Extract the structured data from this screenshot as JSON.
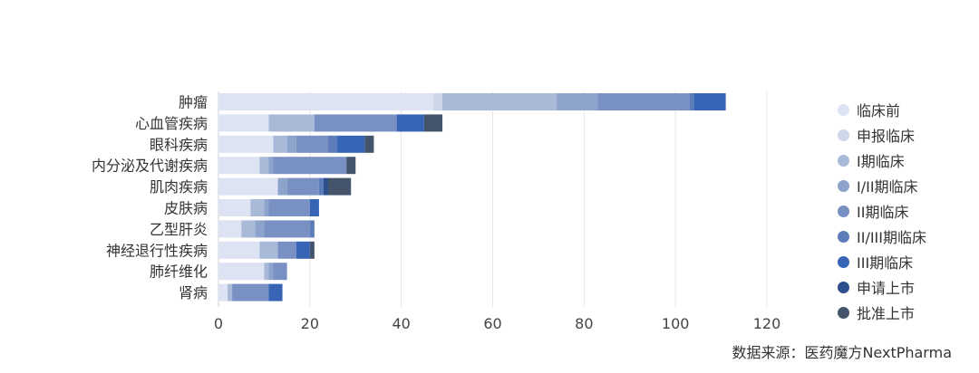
{
  "chart_data": {
    "type": "bar",
    "orientation": "horizontal",
    "stacked": true,
    "categories": [
      "肿瘤",
      "心血管疾病",
      "眼科疾病",
      "内分泌及代谢疾病",
      "肌肉疾病",
      "皮肤病",
      "乙型肝炎",
      "神经退行性疾病",
      "肺纤维化",
      "肾病"
    ],
    "series": [
      {
        "name": "临床前",
        "color": "#dde3f3",
        "values": [
          47,
          11,
          12,
          9,
          13,
          7,
          5,
          9,
          10,
          2
        ]
      },
      {
        "name": "申报临床",
        "color": "#cdd7ea",
        "values": [
          2,
          0,
          0,
          0,
          0,
          0,
          0,
          0,
          0,
          0
        ]
      },
      {
        "name": "I期临床",
        "color": "#a9bad8",
        "values": [
          25,
          10,
          3,
          2,
          0,
          3,
          3,
          4,
          1,
          1
        ]
      },
      {
        "name": "I/II期临床",
        "color": "#8ea3cb",
        "values": [
          9,
          0,
          2,
          1,
          2,
          1,
          2,
          0,
          1,
          0
        ]
      },
      {
        "name": "II期临床",
        "color": "#7891c2",
        "values": [
          20,
          18,
          7,
          16,
          7,
          9,
          10,
          4,
          3,
          8
        ]
      },
      {
        "name": "II/III期临床",
        "color": "#5d7dba",
        "values": [
          1,
          0,
          2,
          0,
          1,
          0,
          1,
          0,
          0,
          0
        ]
      },
      {
        "name": "III期临床",
        "color": "#3764b4",
        "values": [
          7,
          6,
          6,
          0,
          0,
          2,
          0,
          3,
          0,
          3
        ]
      },
      {
        "name": "申请上市",
        "color": "#2c4f8e",
        "values": [
          0,
          0,
          0,
          0,
          1,
          0,
          0,
          0,
          0,
          0
        ]
      },
      {
        "name": "批准上市",
        "color": "#44546a",
        "values": [
          0,
          4,
          2,
          2,
          5,
          0,
          0,
          1,
          0,
          0
        ]
      }
    ],
    "xlim": [
      0,
      120
    ],
    "xticks": [
      0,
      20,
      40,
      60,
      80,
      100,
      120
    ],
    "grid": true,
    "legend": "right"
  },
  "source": "数据来源：医药魔方NextPharma"
}
